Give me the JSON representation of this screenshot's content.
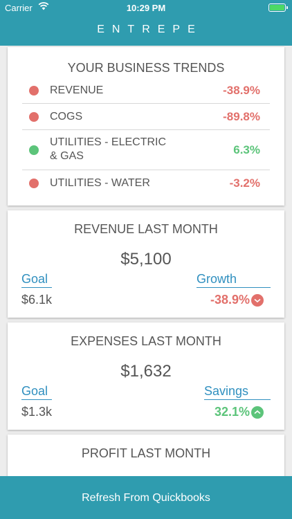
{
  "status": {
    "carrier": "Carrier",
    "time": "10:29 PM",
    "battery_level": 1.0
  },
  "nav": {
    "title": "ENTREPE"
  },
  "trends": {
    "title": "YOUR BUSINESS TRENDS",
    "items": [
      {
        "label": "REVENUE",
        "value": "-38.9%",
        "status": "down",
        "color": "#e2706b"
      },
      {
        "label": "COGS",
        "value": "-89.8%",
        "status": "down",
        "color": "#e2706b"
      },
      {
        "label": "UTILITIES - ELECTRIC & GAS",
        "value": "6.3%",
        "status": "up",
        "color": "#5cc47a"
      },
      {
        "label": "UTILITIES - WATER",
        "value": "-3.2%",
        "status": "down",
        "color": "#e2706b"
      }
    ]
  },
  "revenue": {
    "title": "REVENUE LAST MONTH",
    "amount": "$5,100",
    "goal_label": "Goal",
    "goal_value": "$6.1k",
    "metric_label": "Growth",
    "metric_value": "-38.9%",
    "metric_icon": "chevron-down-icon",
    "metric_color": "#e2706b"
  },
  "expenses": {
    "title": "EXPENSES LAST MONTH",
    "amount": "$1,632",
    "goal_label": "Goal",
    "goal_value": "$1.3k",
    "metric_label": "Savings",
    "metric_value": "32.1%",
    "metric_icon": "chevron-up-icon",
    "metric_color": "#5cc47a"
  },
  "profit": {
    "title": "PROFIT LAST MONTH"
  },
  "footer": {
    "refresh_label": "Refresh From Quickbooks"
  },
  "colors": {
    "brand": "#2f9caf",
    "link": "#2f8fbf",
    "negative": "#e2706b",
    "positive": "#5cc47a"
  }
}
